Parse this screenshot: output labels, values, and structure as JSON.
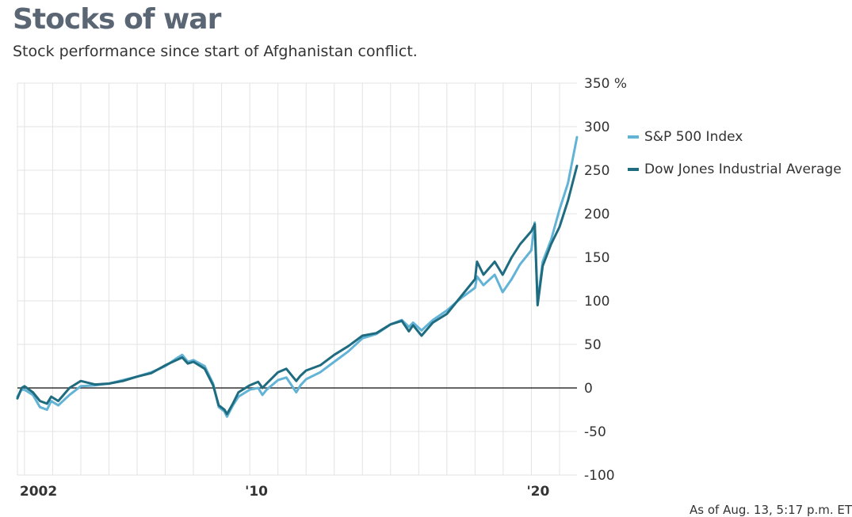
{
  "chart_data": {
    "type": "line",
    "title": "Stocks of war",
    "subtitle": "Stock performance since start of Afghanistan conflict.",
    "footnote": "As of Aug. 13, 5:17 p.m. ET",
    "xlabel": "",
    "ylabel": "",
    "x_range": [
      2001.75,
      2021.62
    ],
    "ylim": [
      -100,
      350
    ],
    "y_ticks": [
      350,
      300,
      250,
      200,
      150,
      100,
      50,
      0,
      -50,
      -100
    ],
    "y_tick_labels": [
      "350 %",
      "300",
      "250",
      "200",
      "150",
      "100",
      "50",
      "0",
      "-50",
      "-100"
    ],
    "x_ticks": [
      {
        "value": 2002,
        "label": "2002"
      },
      {
        "value": 2010,
        "label": "'10"
      },
      {
        "value": 2020,
        "label": "'20"
      }
    ],
    "x_gridlines": [
      2002,
      2003,
      2004,
      2005,
      2006,
      2007,
      2008,
      2009,
      2010,
      2011,
      2012,
      2013,
      2014,
      2015,
      2016,
      2017,
      2018,
      2019,
      2020,
      2021
    ],
    "grid": true,
    "legend_position": "right",
    "series": [
      {
        "name": "S&P 500 Index",
        "color": "#62b3d6",
        "x": [
          2001.75,
          2001.9,
          2002.0,
          2002.3,
          2002.55,
          2002.8,
          2002.95,
          2003.2,
          2003.6,
          2004.0,
          2004.5,
          2005.0,
          2005.5,
          2006.0,
          2006.5,
          2007.0,
          2007.4,
          2007.6,
          2007.8,
          2008.0,
          2008.4,
          2008.7,
          2008.9,
          2009.1,
          2009.19,
          2009.4,
          2009.6,
          2010.0,
          2010.3,
          2010.45,
          2010.6,
          2011.0,
          2011.3,
          2011.65,
          2011.8,
          2012.0,
          2012.5,
          2013.0,
          2013.5,
          2014.0,
          2014.5,
          2015.0,
          2015.4,
          2015.65,
          2015.8,
          2016.1,
          2016.5,
          2017.0,
          2017.5,
          2018.0,
          2018.07,
          2018.3,
          2018.7,
          2018.98,
          2019.3,
          2019.6,
          2020.0,
          2020.12,
          2020.22,
          2020.4,
          2020.7,
          2021.0,
          2021.3,
          2021.62
        ],
        "values": [
          -10,
          -2,
          -2,
          -8,
          -22,
          -25,
          -15,
          -20,
          -8,
          2,
          3,
          5,
          9,
          13,
          18,
          25,
          34,
          38,
          30,
          32,
          25,
          5,
          -22,
          -27,
          -33,
          -20,
          -10,
          -2,
          0,
          -8,
          -2,
          9,
          12,
          -5,
          3,
          10,
          18,
          30,
          42,
          57,
          62,
          73,
          78,
          70,
          75,
          66,
          78,
          89,
          103,
          115,
          128,
          118,
          130,
          110,
          125,
          142,
          158,
          190,
          98,
          145,
          170,
          205,
          235,
          288
        ]
      },
      {
        "name": "Dow Jones Industrial Average",
        "color": "#1f6c80",
        "x": [
          2001.75,
          2001.9,
          2002.0,
          2002.3,
          2002.55,
          2002.8,
          2002.95,
          2003.2,
          2003.6,
          2004.0,
          2004.5,
          2005.0,
          2005.5,
          2006.0,
          2006.5,
          2007.0,
          2007.4,
          2007.6,
          2007.8,
          2008.0,
          2008.4,
          2008.7,
          2008.9,
          2009.1,
          2009.19,
          2009.4,
          2009.6,
          2010.0,
          2010.3,
          2010.45,
          2010.6,
          2011.0,
          2011.3,
          2011.65,
          2011.8,
          2012.0,
          2012.5,
          2013.0,
          2013.5,
          2014.0,
          2014.5,
          2015.0,
          2015.4,
          2015.65,
          2015.8,
          2016.1,
          2016.5,
          2017.0,
          2017.5,
          2018.0,
          2018.07,
          2018.3,
          2018.7,
          2018.98,
          2019.3,
          2019.6,
          2020.0,
          2020.12,
          2020.22,
          2020.4,
          2020.7,
          2021.0,
          2021.3,
          2021.62
        ],
        "values": [
          -12,
          0,
          2,
          -5,
          -15,
          -18,
          -10,
          -15,
          0,
          8,
          4,
          5,
          8,
          13,
          17,
          26,
          32,
          35,
          28,
          30,
          22,
          3,
          -20,
          -25,
          -30,
          -18,
          -5,
          3,
          7,
          0,
          5,
          18,
          22,
          8,
          14,
          20,
          26,
          38,
          48,
          60,
          63,
          73,
          77,
          65,
          72,
          60,
          75,
          85,
          105,
          125,
          145,
          130,
          145,
          130,
          150,
          165,
          180,
          188,
          95,
          140,
          165,
          185,
          215,
          255
        ]
      }
    ]
  }
}
